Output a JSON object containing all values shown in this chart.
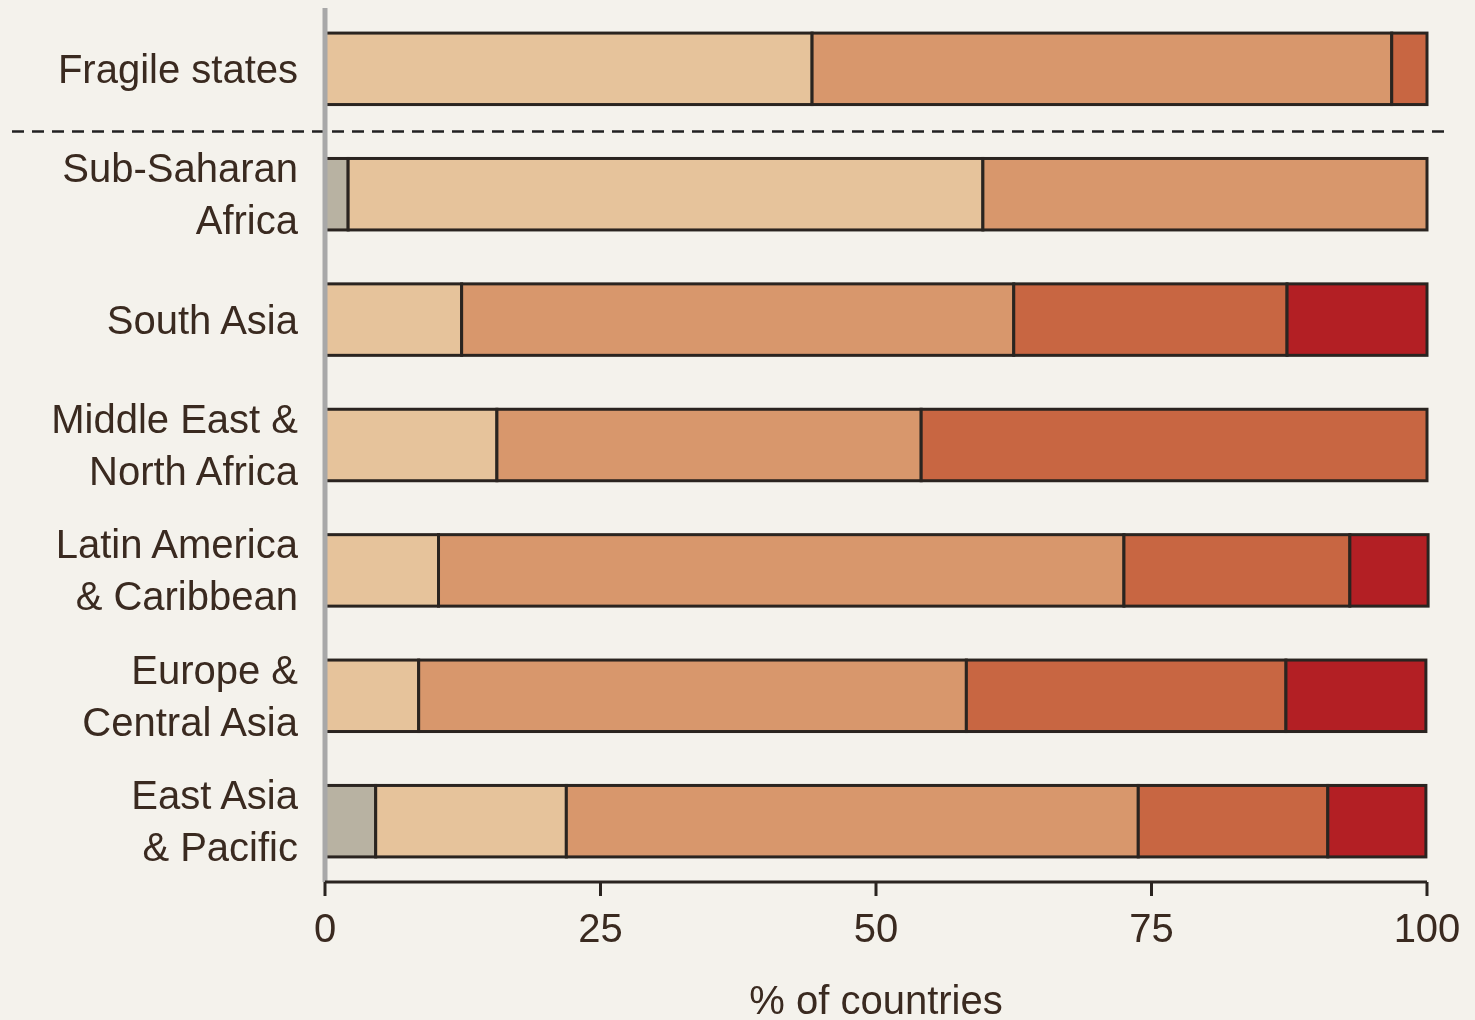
{
  "chart_data": {
    "type": "bar",
    "orientation": "horizontal",
    "stacked": true,
    "xlabel": "% of countries",
    "categories": [
      "Fragile states",
      "Sub-Saharan Africa",
      "South Asia",
      "Middle East & North Africa",
      "Latin America & Caribbean",
      "Europe & Central Asia",
      "East Asia & Pacific"
    ],
    "series": [
      {
        "color": "#b8b2a2",
        "values": [
          0,
          2.1,
          0,
          0,
          0,
          0,
          4.6
        ]
      },
      {
        "color": "#e6c39b",
        "values": [
          44.2,
          57.6,
          12.4,
          15.6,
          10.3,
          8.5,
          17.3
        ]
      },
      {
        "color": "#d8976c",
        "values": [
          52.6,
          40.3,
          50.1,
          38.5,
          62.2,
          49.7,
          51.9
        ]
      },
      {
        "color": "#c86642",
        "values": [
          3.2,
          0,
          24.8,
          45.9,
          20.5,
          29.0,
          17.2
        ]
      },
      {
        "color": "#b31f24",
        "values": [
          0,
          0,
          12.7,
          0,
          7.1,
          12.7,
          8.9
        ]
      }
    ],
    "xlim": [
      0,
      100
    ],
    "xticks": [
      0,
      25,
      50,
      75,
      100
    ],
    "grid": false
  }
}
